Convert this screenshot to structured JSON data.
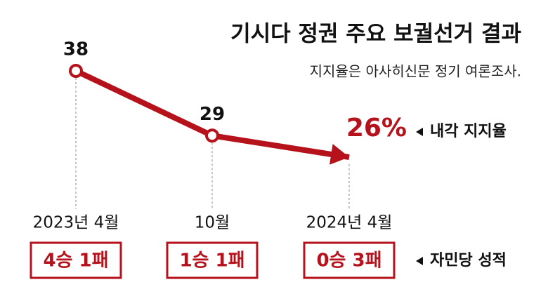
{
  "chart_data": {
    "type": "line",
    "title": "기시다 정권 주요 보궐선거 결과",
    "subtitle": "지지율은 아사히신문 정기 여론조사.",
    "categories": [
      "2023년 4월",
      "10월",
      "2024년 4월"
    ],
    "series": [
      {
        "name": "내각 지지율",
        "color": "#b5121b",
        "values": [
          38,
          29,
          26
        ],
        "value_labels": [
          "38",
          "29",
          "26%"
        ]
      }
    ],
    "records": {
      "name": "자민당 성적",
      "values": [
        "4승 1패",
        "1승 1패",
        "0승 3패"
      ],
      "color": "#b5121b"
    }
  }
}
